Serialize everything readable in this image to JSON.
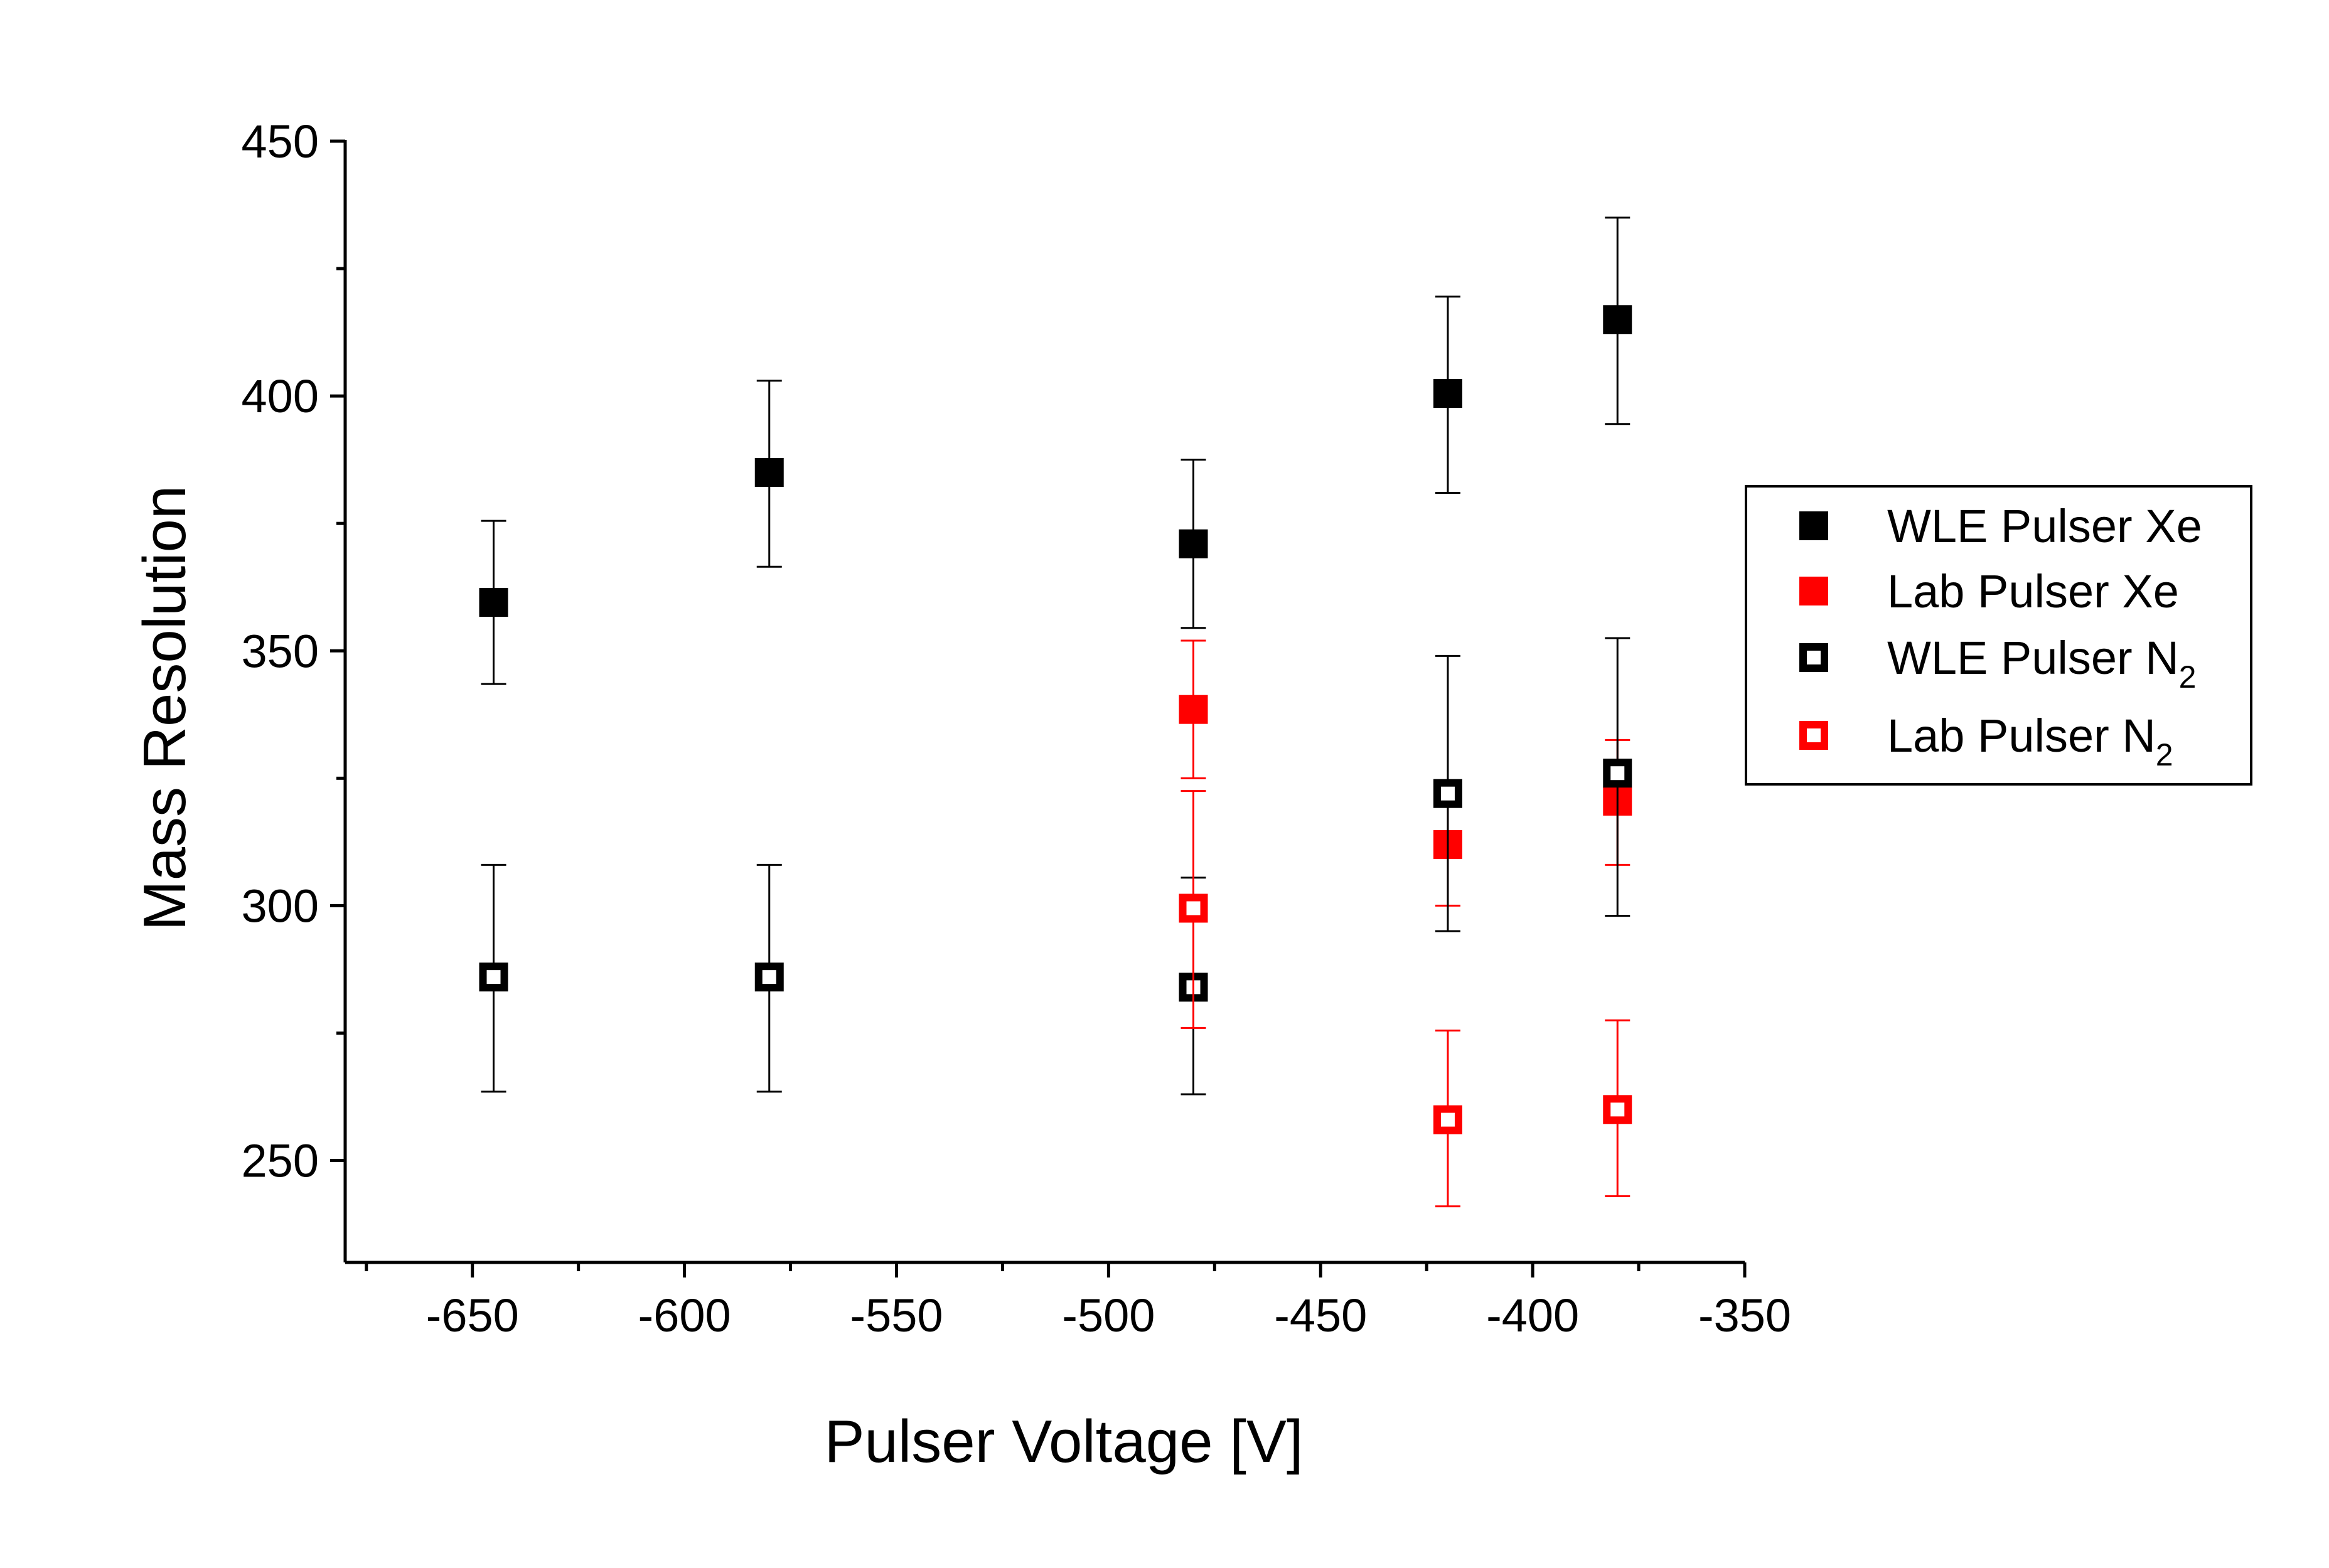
{
  "chart_data": {
    "type": "scatter",
    "title": "",
    "xlabel": "Pulser Voltage [V]",
    "ylabel": "Mass Resolution",
    "xlim": [
      -680,
      -350
    ],
    "ylim": [
      230,
      450
    ],
    "x_ticks": [
      -650,
      -600,
      -550,
      -500,
      -450,
      -400,
      -350
    ],
    "y_ticks": [
      250,
      300,
      350,
      400,
      450
    ],
    "x_tick_labels": [
      "-650",
      "-600",
      "-550",
      "-500",
      "-450",
      "-400",
      "-350"
    ],
    "y_tick_labels": [
      "250",
      "300",
      "350",
      "400",
      "450"
    ],
    "grid": false,
    "legend_position": "right",
    "series": [
      {
        "name": "WLE Pulser Xe",
        "label_main": "WLE Pulser Xe",
        "label_sub": "",
        "color": "#000000",
        "marker": "filled-square",
        "x": [
          -645,
          -580,
          -480,
          -420,
          -380
        ],
        "y": [
          359.5,
          385,
          371,
          400.5,
          415
        ],
        "err_low": [
          343.5,
          366.5,
          354.5,
          381,
          394.5
        ],
        "err_high": [
          375.5,
          403,
          387.5,
          419.5,
          435
        ]
      },
      {
        "name": "Lab Pulser Xe",
        "label_main": "Lab Pulser Xe",
        "label_sub": "",
        "color": "#ff0000",
        "marker": "filled-square",
        "x": [
          -480,
          -420,
          -380
        ],
        "y": [
          338.5,
          312,
          320.5
        ],
        "err_low": [
          325,
          300,
          308
        ],
        "err_high": [
          352,
          324.5,
          332.5
        ]
      },
      {
        "name": "WLE Pulser N2",
        "label_main": "WLE Pulser N",
        "label_sub": "2",
        "color": "#000000",
        "marker": "open-square",
        "x": [
          -645,
          -580,
          -480,
          -420,
          -380
        ],
        "y": [
          286,
          286,
          284,
          322,
          326
        ],
        "err_low": [
          263.5,
          263.5,
          263,
          295,
          298
        ],
        "err_high": [
          308,
          308,
          305.5,
          349,
          352.5
        ]
      },
      {
        "name": "Lab Pulser N2",
        "label_main": "Lab Pulser N",
        "label_sub": "2",
        "color": "#ff0000",
        "marker": "open-square",
        "x": [
          -480,
          -420,
          -380
        ],
        "y": [
          299.5,
          258,
          260
        ],
        "err_low": [
          276,
          241,
          243
        ],
        "err_high": [
          322.5,
          275.5,
          277.5
        ]
      }
    ]
  }
}
